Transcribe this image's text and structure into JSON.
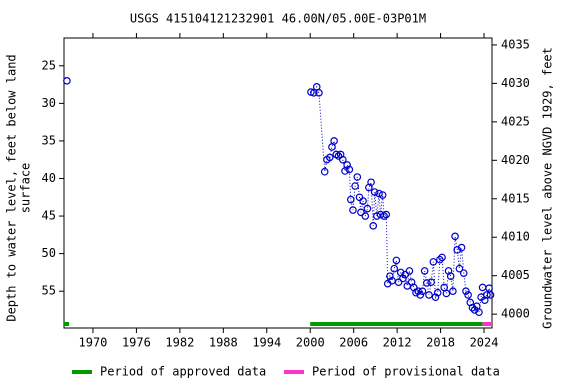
{
  "chart_data": {
    "type": "scatter",
    "title": "USGS 415104121232901 46.00N/05.00E-03P01M",
    "ylabel": [
      "Depth to water level, feet below land",
      "surface"
    ],
    "y2label": "Groundwater level above NGVD 1929, feet",
    "xlim": [
      1966,
      2025.1
    ],
    "xticks": [
      1970,
      1976,
      1982,
      1988,
      1994,
      2000,
      2006,
      2012,
      2018,
      2024
    ],
    "ylim": [
      21.3,
      59.9
    ],
    "y_inverted": true,
    "yticks": [
      25,
      30,
      35,
      40,
      45,
      50,
      55
    ],
    "y2lim": [
      3998.2,
      4035.9
    ],
    "y2ticks": [
      4000,
      4005,
      4010,
      4015,
      4020,
      4025,
      4030,
      4035
    ],
    "series": [
      {
        "color": "#0000cc",
        "x": [
          1966.4,
          null,
          2000.1,
          2000.5,
          2000.9,
          2001.2,
          2002.0,
          2002.3,
          2002.7,
          2003.0,
          2003.3,
          2003.6,
          2003.9,
          2004.2,
          2004.5,
          2004.8,
          2005.1,
          2005.4,
          2005.6,
          2005.9,
          2006.2,
          2006.5,
          2006.8,
          2007.0,
          2007.3,
          2007.6,
          2007.9,
          2008.1,
          2008.4,
          2008.7,
          2008.9,
          2009.2,
          2009.5,
          2009.7,
          2010.0,
          2010.2,
          2010.5,
          2010.7,
          2011.0,
          2011.3,
          2011.6,
          2011.9,
          2012.2,
          2012.5,
          2012.8,
          2013.1,
          2013.4,
          2013.7,
          2014.0,
          2014.3,
          2014.6,
          2014.9,
          2015.2,
          2015.5,
          2015.8,
          2016.1,
          2016.4,
          2016.7,
          2017.0,
          2017.3,
          2017.6,
          2017.9,
          2018.2,
          2018.5,
          2018.8,
          2019.1,
          2019.4,
          2019.7,
          2020.0,
          2020.3,
          2020.6,
          2020.9,
          2021.2,
          2021.5,
          2021.8,
          2022.1,
          2022.4,
          2022.7,
          2023.0,
          2023.3,
          2023.6,
          2023.8,
          2024.1,
          2024.4,
          2024.7,
          2024.9
        ],
        "values": [
          27.0,
          null,
          28.5,
          28.6,
          27.8,
          28.6,
          39.1,
          37.5,
          37.2,
          35.8,
          35.0,
          36.8,
          37.0,
          36.8,
          37.5,
          39.0,
          38.2,
          38.8,
          42.8,
          44.2,
          41.0,
          39.8,
          42.5,
          44.5,
          43.0,
          45.0,
          44.0,
          41.2,
          40.5,
          46.3,
          41.8,
          45.0,
          42.0,
          44.8,
          42.2,
          45.0,
          44.8,
          54.0,
          53.0,
          53.6,
          52.0,
          50.9,
          53.8,
          52.5,
          53.3,
          52.8,
          54.3,
          52.3,
          53.8,
          54.5,
          55.2,
          55.0,
          55.5,
          55.0,
          52.3,
          53.9,
          55.5,
          53.8,
          51.1,
          55.8,
          55.2,
          50.8,
          50.5,
          54.5,
          55.3,
          52.3,
          53.0,
          55.0,
          47.7,
          49.5,
          52.0,
          49.2,
          52.6,
          55.0,
          55.5,
          56.5,
          57.2,
          57.5,
          57.0,
          57.8,
          55.8,
          54.5,
          56.2,
          55.5,
          54.6,
          55.5
        ]
      }
    ],
    "periods": [
      {
        "name": "Period of approved data",
        "color": "#009900",
        "ranges": [
          [
            1966,
            1966.7
          ],
          [
            2000,
            2023.8
          ]
        ]
      },
      {
        "name": "Period of provisional data",
        "color": "#ff33cc",
        "ranges": [
          [
            2023.8,
            2025.1
          ]
        ]
      }
    ]
  }
}
